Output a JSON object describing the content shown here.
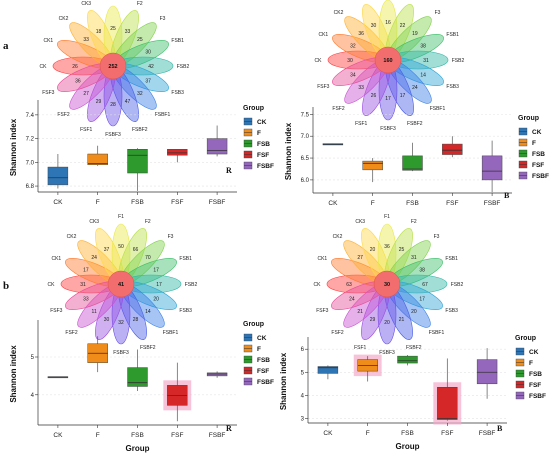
{
  "figure": {
    "panel_labels": [
      "a",
      "b"
    ]
  },
  "chart_data": [
    {
      "type": "boxplot",
      "id": "a-R",
      "corner_label": "R",
      "ylabel": "Shannon index",
      "xlabel": "",
      "ylim": [
        6.75,
        7.5
      ],
      "yticks": [
        6.8,
        7.0,
        7.2,
        7.4
      ],
      "categories": [
        "CK",
        "F",
        "FSB",
        "FSF",
        "FSBF"
      ],
      "boxes": [
        {
          "min": 6.78,
          "q1": 6.81,
          "median": 6.87,
          "q3": 6.96,
          "max": 7.07
        },
        {
          "min": 6.97,
          "q1": 6.98,
          "median": 6.99,
          "q3": 7.07,
          "max": 7.14
        },
        {
          "min": 6.76,
          "q1": 6.91,
          "median": 7.06,
          "q3": 7.11,
          "max": 7.12
        },
        {
          "min": 7.0,
          "q1": 7.06,
          "median": 7.08,
          "q3": 7.11,
          "max": 7.11
        },
        {
          "min": 7.05,
          "q1": 7.07,
          "median": 7.1,
          "q3": 7.2,
          "max": 7.31
        }
      ],
      "highlight_boxes": [],
      "legend": {
        "title": "Group",
        "items": [
          "CK",
          "F",
          "FSB",
          "FSF",
          "FSBF"
        ]
      },
      "flower": {
        "center": "252",
        "petals": [
          {
            "name": "CK",
            "value": "26"
          },
          {
            "name": "CK1",
            "value": ""
          },
          {
            "name": "CK2",
            "value": "33"
          },
          {
            "name": "CK3",
            "value": "18"
          },
          {
            "name": "F1",
            "value": "25"
          },
          {
            "name": "F2",
            "value": "33"
          },
          {
            "name": "F3",
            "value": "25"
          },
          {
            "name": "FSB1",
            "value": "30"
          },
          {
            "name": "FSB2",
            "value": "42"
          },
          {
            "name": "FSB3",
            "value": "37"
          },
          {
            "name": "FSBF1",
            "value": "32"
          },
          {
            "name": "FSBF2",
            "value": "47"
          },
          {
            "name": "FSBF3",
            "value": "28"
          },
          {
            "name": "FSF1",
            "value": "29"
          },
          {
            "name": "FSF2",
            "value": "27"
          },
          {
            "name": "FSF3",
            "value": "36"
          }
        ]
      }
    },
    {
      "type": "boxplot",
      "id": "a-B",
      "corner_label": "B",
      "ylabel": "Shannon index",
      "xlabel": "",
      "ylim": [
        5.7,
        7.6
      ],
      "yticks": [
        6.0,
        6.5,
        7.0,
        7.5
      ],
      "categories": [
        "CK",
        "F",
        "FSB",
        "FSF",
        "FSBF"
      ],
      "boxes": [
        {
          "min": 6.8,
          "q1": 6.8,
          "median": 6.81,
          "q3": 6.83,
          "max": 6.83
        },
        {
          "min": 5.95,
          "q1": 6.23,
          "median": 6.38,
          "q3": 6.43,
          "max": 6.5
        },
        {
          "min": 6.2,
          "q1": 6.22,
          "median": 6.25,
          "q3": 6.55,
          "max": 6.85
        },
        {
          "min": 6.52,
          "q1": 6.58,
          "median": 6.68,
          "q3": 6.82,
          "max": 7.0
        },
        {
          "min": 5.72,
          "q1": 6.0,
          "median": 6.2,
          "q3": 6.55,
          "max": 6.9
        }
      ],
      "highlight_boxes": [],
      "legend": {
        "title": "Group",
        "items": [
          "CK",
          "F",
          "FSB",
          "FSF",
          "FSBF"
        ]
      },
      "flower": {
        "center": "160",
        "petals": [
          {
            "name": "CK",
            "value": "30"
          },
          {
            "name": "CK1",
            "value": "32"
          },
          {
            "name": "CK2",
            "value": "36"
          },
          {
            "name": "CK3",
            "value": "30"
          },
          {
            "name": "F1",
            "value": "16"
          },
          {
            "name": "F2",
            "value": "22"
          },
          {
            "name": "F3",
            "value": "19"
          },
          {
            "name": "FSB1",
            "value": "38"
          },
          {
            "name": "FSB2",
            "value": "31"
          },
          {
            "name": "FSB3",
            "value": "14"
          },
          {
            "name": "FSBF1",
            "value": "24"
          },
          {
            "name": "FSBF2",
            "value": "17"
          },
          {
            "name": "FSBF3",
            "value": "17"
          },
          {
            "name": "FSF1",
            "value": "26"
          },
          {
            "name": "FSF2",
            "value": "33"
          },
          {
            "name": "FSF3",
            "value": "34"
          }
        ]
      }
    },
    {
      "type": "boxplot",
      "id": "b-R",
      "corner_label": "R",
      "ylabel": "Shannon index",
      "xlabel": "Group",
      "ylim": [
        3.2,
        5.9
      ],
      "yticks": [
        4,
        5
      ],
      "categories": [
        "CK",
        "F",
        "FSB",
        "FSF",
        "FSBF"
      ],
      "boxes": [
        {
          "min": 4.45,
          "q1": 4.45,
          "median": 4.47,
          "q3": 4.48,
          "max": 4.48
        },
        {
          "min": 4.6,
          "q1": 4.85,
          "median": 5.1,
          "q3": 5.35,
          "max": 5.55
        },
        {
          "min": 4.1,
          "q1": 4.22,
          "median": 4.32,
          "q3": 4.72,
          "max": 5.2
        },
        {
          "min": 3.3,
          "q1": 3.72,
          "median": 3.98,
          "q3": 4.25,
          "max": 4.85
        },
        {
          "min": 4.45,
          "q1": 4.5,
          "median": 4.55,
          "q3": 4.58,
          "max": 4.62
        }
      ],
      "highlight_boxes": [
        3
      ],
      "legend": {
        "title": "Group",
        "items": [
          "CK",
          "F",
          "FSB",
          "FSF",
          "FSBF"
        ]
      },
      "flower": {
        "center": "41",
        "petals": [
          {
            "name": "CK",
            "value": "31"
          },
          {
            "name": "CK1",
            "value": "17"
          },
          {
            "name": "CK2",
            "value": "24"
          },
          {
            "name": "CK3",
            "value": "37"
          },
          {
            "name": "F1",
            "value": "50"
          },
          {
            "name": "F2",
            "value": "66"
          },
          {
            "name": "F3",
            "value": "70"
          },
          {
            "name": "FSB1",
            "value": "17"
          },
          {
            "name": "FSB2",
            "value": "17"
          },
          {
            "name": "FSB3",
            "value": "20"
          },
          {
            "name": "FSBF1",
            "value": "14"
          },
          {
            "name": "FSBF2",
            "value": "28"
          },
          {
            "name": "FSBF3",
            "value": "32"
          },
          {
            "name": "FSF1",
            "value": "30"
          },
          {
            "name": "FSF2",
            "value": "11"
          },
          {
            "name": "FSF3",
            "value": "33"
          }
        ]
      }
    },
    {
      "type": "boxplot",
      "id": "b-B",
      "corner_label": "B",
      "ylabel": "Shannon index",
      "xlabel": "Group",
      "ylim": [
        2.8,
        6.4
      ],
      "yticks": [
        3,
        4,
        5,
        6
      ],
      "categories": [
        "CK",
        "F",
        "FSB",
        "FSF",
        "FSBF"
      ],
      "boxes": [
        {
          "min": 4.7,
          "q1": 4.95,
          "median": 5.2,
          "q3": 5.25,
          "max": 5.3
        },
        {
          "min": 4.6,
          "q1": 5.05,
          "median": 5.3,
          "q3": 5.55,
          "max": 5.7
        },
        {
          "min": 5.3,
          "q1": 5.4,
          "median": 5.5,
          "q3": 5.7,
          "max": 5.75
        },
        {
          "min": 2.9,
          "q1": 2.95,
          "median": 3.0,
          "q3": 4.35,
          "max": 5.6
        },
        {
          "min": 3.85,
          "q1": 4.5,
          "median": 5.0,
          "q3": 5.55,
          "max": 6.05
        }
      ],
      "highlight_boxes": [
        1,
        3
      ],
      "legend": {
        "title": "Group",
        "items": [
          "CK",
          "F",
          "FSB",
          "FSF",
          "FSBF"
        ]
      },
      "flower": {
        "center": "30",
        "petals": [
          {
            "name": "CK",
            "value": "63"
          },
          {
            "name": "CK1",
            "value": ""
          },
          {
            "name": "CK2",
            "value": "27"
          },
          {
            "name": "CK3",
            "value": "20"
          },
          {
            "name": "F1",
            "value": "36"
          },
          {
            "name": "F2",
            "value": "25"
          },
          {
            "name": "F3",
            "value": "31"
          },
          {
            "name": "FSB1",
            "value": "38"
          },
          {
            "name": "FSB2",
            "value": "67"
          },
          {
            "name": "FSB3",
            "value": "17"
          },
          {
            "name": "FSBF1",
            "value": "20"
          },
          {
            "name": "FSBF2",
            "value": "21"
          },
          {
            "name": "FSBF3",
            "value": "20"
          },
          {
            "name": "FSF1",
            "value": "29"
          },
          {
            "name": "FSF2",
            "value": "21"
          },
          {
            "name": "FSF3",
            "value": "24"
          }
        ]
      }
    }
  ],
  "colors": {
    "CK": "#2e75b6",
    "F": "#f08c1a",
    "FSB": "#2e9a2e",
    "FSF": "#d62728",
    "FSBF": "#9467bd",
    "flower_center": "#f26d6d",
    "highlight": "#f4a9c9"
  }
}
